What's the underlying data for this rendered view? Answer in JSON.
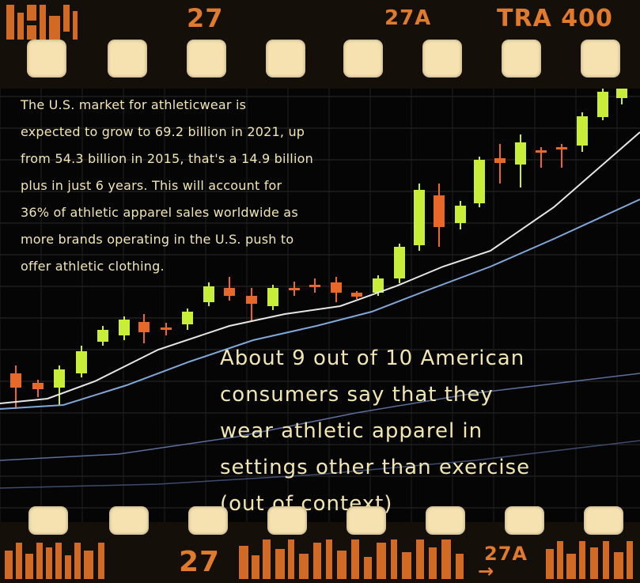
{
  "film": {
    "top_frame_number": "27",
    "top_frame_number_alt": "27A",
    "film_type": "TRA 400",
    "bottom_frame_number": "27",
    "bottom_frame_number_alt": "27A",
    "bottom_arrow": "→"
  },
  "paragraph": {
    "lines": [
      "The U.S. market for athleticwear is",
      "expected to grow to 69.2 billion in 2021, up",
      "from 54.3 billion in 2015, that's a 14.9 billion",
      "plus in just 6 years. This will account for",
      "36% of athletic apparel sales worldwide as",
      "more brands operating in the U.S. push to",
      "offer athletic clothing."
    ]
  },
  "callout": {
    "lines": [
      "About 9 out of 10 American",
      "consumers say that they",
      "wear athletic apparel in",
      "settings other than exercise",
      "(out of context)"
    ]
  },
  "colors": {
    "film_base": "#140f08",
    "sprocket_hole": "#f6e2b0",
    "edge_print": "#e07a2c",
    "text": "#f2e6b0",
    "candle_up": "#c8ee3a",
    "candle_down": "#e8682a",
    "ma_fast": "#e6e6e6",
    "ma_slow": "#7fa8d8"
  }
}
